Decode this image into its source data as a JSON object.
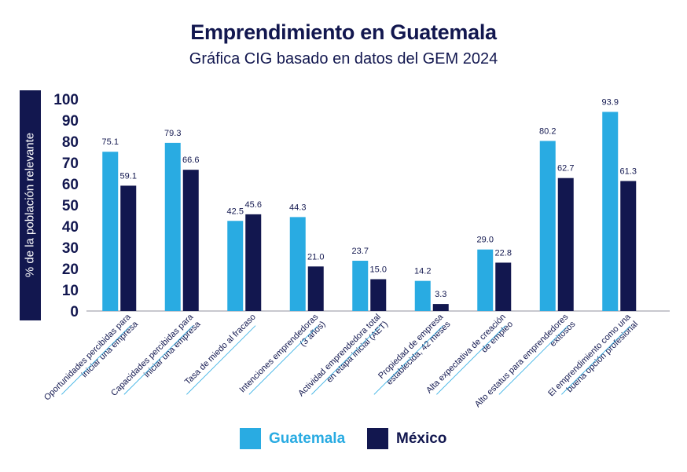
{
  "chart_data": {
    "type": "bar",
    "title": "Emprendimiento en Guatemala",
    "subtitle": "Gráfica CIG basado en datos del GEM 2024",
    "ylabel": "% de la población relevante",
    "xlabel": "",
    "ylim": [
      0,
      100
    ],
    "yticks": [
      "100",
      "90",
      "80",
      "70",
      "60",
      "50",
      "40",
      "30",
      "20",
      "10",
      "0"
    ],
    "categories": [
      [
        "Oportunidades percibidas para",
        "iniciar una empresa"
      ],
      [
        "Capacidades percibidas para",
        "iniciar una empresa"
      ],
      [
        "Tasa de miedo al fracaso"
      ],
      [
        "Intenciones emprendedoras",
        "(3 años)"
      ],
      [
        "Actividad emprendedora total",
        "en etapa inicial (AET)"
      ],
      [
        "Propiedad de empresa",
        "establecida, 42 meses"
      ],
      [
        "Alta expectativa de creación",
        "de empleo"
      ],
      [
        "Alto estatus para emprendedores",
        "exitosos"
      ],
      [
        "El emprendimiento como una",
        "buena opción profesional"
      ]
    ],
    "series": [
      {
        "name": "Guatemala",
        "color": "#29abe2",
        "values": [
          75.1,
          79.3,
          42.5,
          44.3,
          23.7,
          14.2,
          29.0,
          80.2,
          93.9
        ],
        "labels": [
          "75.1",
          "79.3",
          "42.5",
          "44.3",
          "23.7",
          "14.2",
          "29.0",
          "80.2",
          "93.9"
        ]
      },
      {
        "name": "México",
        "color": "#12174f",
        "values": [
          59.1,
          66.6,
          45.6,
          21.0,
          15.0,
          3.3,
          22.8,
          62.7,
          61.3
        ],
        "labels": [
          "59.1",
          "66.6",
          "45.6",
          "21.0",
          "15.0",
          "3.3",
          "22.8",
          "62.7",
          "61.3"
        ]
      }
    ],
    "legend": "bottom-center"
  }
}
